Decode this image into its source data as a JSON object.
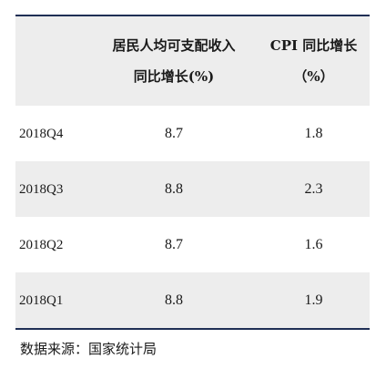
{
  "table": {
    "headers": [
      "",
      "居民人均可支配收入\n同比增长(%)",
      "CPI 同比增长\n（%）"
    ],
    "rows": [
      [
        "2018Q4",
        "8.7",
        "1.8"
      ],
      [
        "2018Q3",
        "8.8",
        "2.3"
      ],
      [
        "2018Q2",
        "8.7",
        "1.6"
      ],
      [
        "2018Q1",
        "8.8",
        "1.9"
      ]
    ],
    "shaded_rows": [
      true,
      false,
      true,
      false,
      true
    ],
    "border_color": "#1f2f55",
    "shade_color": "#ededed"
  },
  "source": "数据来源：国家统计局"
}
